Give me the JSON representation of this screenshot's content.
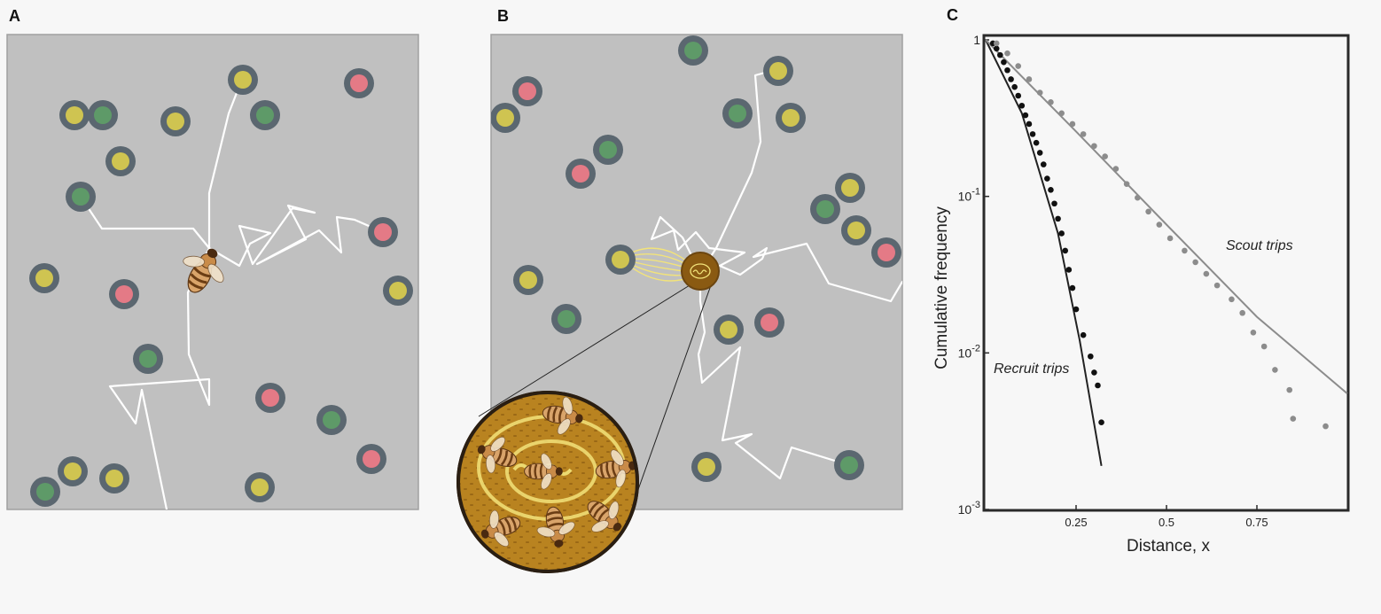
{
  "panels": {
    "a": {
      "letter": "A"
    },
    "b": {
      "letter": "B"
    },
    "c": {
      "letter": "C"
    }
  },
  "colors": {
    "background": "#f7f7f7",
    "field": "#c0c0c0",
    "ring": "#5b6770",
    "flower_yellow": "#cfc451",
    "flower_green": "#5e9a68",
    "flower_red": "#e47a86",
    "trail": "#ffffff",
    "hive": "#8a5a12",
    "comb": "#b07a18",
    "dance": "#f2e37a",
    "recruit": "#111111",
    "scout": "#8c8c8c"
  },
  "icons": {
    "bee": "bee-icon",
    "hive": "hive-icon",
    "dance_inset": "waggle-dance-inset-icon"
  },
  "chart_data": {
    "type": "scatter",
    "title": "",
    "xlabel": "Distance, x",
    "ylabel": "Cumulative frequency",
    "xlim": [
      0,
      1
    ],
    "ylim": [
      0.001,
      1
    ],
    "yscale": "log",
    "grid": false,
    "x_ticks": [
      0.25,
      0.5,
      0.75
    ],
    "x_tick_labels": [
      "0.25",
      "0.5",
      "0.75"
    ],
    "y_ticks": [
      1,
      0.1,
      0.01,
      0.001
    ],
    "y_tick_labels": [
      {
        "base": "1",
        "exp": ""
      },
      {
        "base": "10",
        "exp": "-1"
      },
      {
        "base": "10",
        "exp": "-2"
      },
      {
        "base": "10",
        "exp": "-3"
      }
    ],
    "series": [
      {
        "name": "Recruit trips",
        "color": "#111111",
        "points": [
          [
            0.02,
            0.95
          ],
          [
            0.03,
            0.88
          ],
          [
            0.04,
            0.8
          ],
          [
            0.05,
            0.72
          ],
          [
            0.06,
            0.64
          ],
          [
            0.07,
            0.56
          ],
          [
            0.08,
            0.5
          ],
          [
            0.09,
            0.44
          ],
          [
            0.1,
            0.38
          ],
          [
            0.11,
            0.33
          ],
          [
            0.12,
            0.29
          ],
          [
            0.13,
            0.25
          ],
          [
            0.14,
            0.22
          ],
          [
            0.15,
            0.19
          ],
          [
            0.16,
            0.16
          ],
          [
            0.17,
            0.13
          ],
          [
            0.18,
            0.11
          ],
          [
            0.19,
            0.09
          ],
          [
            0.2,
            0.072
          ],
          [
            0.21,
            0.058
          ],
          [
            0.22,
            0.045
          ],
          [
            0.23,
            0.034
          ],
          [
            0.24,
            0.026
          ],
          [
            0.25,
            0.019
          ],
          [
            0.27,
            0.013
          ],
          [
            0.29,
            0.0095
          ],
          [
            0.3,
            0.0075
          ],
          [
            0.31,
            0.0062
          ],
          [
            0.32,
            0.0036
          ]
        ],
        "fit": [
          [
            0.0,
            1.0
          ],
          [
            0.1,
            0.34
          ],
          [
            0.2,
            0.058
          ],
          [
            0.26,
            0.012
          ],
          [
            0.32,
            0.0019
          ]
        ]
      },
      {
        "name": "Scout trips",
        "color": "#8c8c8c",
        "points": [
          [
            0.03,
            0.95
          ],
          [
            0.06,
            0.82
          ],
          [
            0.09,
            0.68
          ],
          [
            0.12,
            0.56
          ],
          [
            0.15,
            0.46
          ],
          [
            0.18,
            0.4
          ],
          [
            0.21,
            0.34
          ],
          [
            0.24,
            0.29
          ],
          [
            0.27,
            0.25
          ],
          [
            0.3,
            0.21
          ],
          [
            0.33,
            0.18
          ],
          [
            0.36,
            0.15
          ],
          [
            0.39,
            0.12
          ],
          [
            0.42,
            0.098
          ],
          [
            0.45,
            0.08
          ],
          [
            0.48,
            0.066
          ],
          [
            0.51,
            0.054
          ],
          [
            0.55,
            0.045
          ],
          [
            0.58,
            0.038
          ],
          [
            0.61,
            0.032
          ],
          [
            0.64,
            0.027
          ],
          [
            0.68,
            0.022
          ],
          [
            0.71,
            0.018
          ],
          [
            0.74,
            0.0135
          ],
          [
            0.77,
            0.011
          ],
          [
            0.8,
            0.0078
          ],
          [
            0.84,
            0.0058
          ],
          [
            0.85,
            0.0038
          ],
          [
            0.94,
            0.0034
          ]
        ],
        "fit": [
          [
            0.0,
            1.0
          ],
          [
            0.25,
            0.26
          ],
          [
            0.5,
            0.066
          ],
          [
            0.75,
            0.017
          ],
          [
            1.0,
            0.0055
          ]
        ]
      }
    ]
  }
}
